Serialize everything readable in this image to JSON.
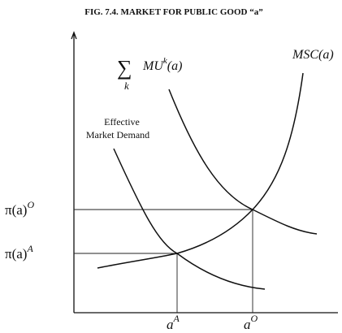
{
  "title": "FIG. 7.4. MARKET FOR PUBLIC GOOD “a”",
  "curves": {
    "msc": "MSC(a)",
    "sum_mu": {
      "symbol": "∑",
      "index": "k",
      "base": "MU",
      "sup": "k",
      "arg": "(a)"
    },
    "demand": [
      "Effective",
      "Market Demand"
    ]
  },
  "y_labels": [
    {
      "base": "π(a)",
      "sup": "O"
    },
    {
      "base": "π(a)",
      "sup": "A"
    }
  ],
  "x_labels": [
    {
      "base": "a",
      "sup": "A"
    },
    {
      "base": "a",
      "sup": "O"
    }
  ]
}
